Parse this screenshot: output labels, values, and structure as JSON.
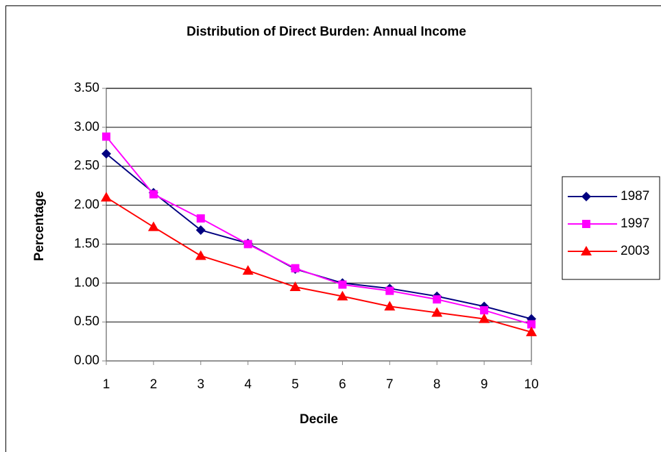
{
  "chart_data": {
    "type": "line",
    "title": "Distribution of Direct Burden: Annual Income",
    "x_label": "Decile",
    "y_label": "Percentage",
    "x": [
      1,
      2,
      3,
      4,
      5,
      6,
      7,
      8,
      9,
      10
    ],
    "xlim": [
      1,
      10
    ],
    "xticks": [
      1,
      2,
      3,
      4,
      5,
      6,
      7,
      8,
      9,
      10
    ],
    "ylim": [
      0,
      3.5
    ],
    "yticks": [
      {
        "value": 0,
        "label": "0.00"
      },
      {
        "value": 0.5,
        "label": "0.50"
      },
      {
        "value": 1,
        "label": "1.00"
      },
      {
        "value": 1.5,
        "label": "1.50"
      },
      {
        "value": 2,
        "label": "2.00"
      },
      {
        "value": 2.5,
        "label": "2.50"
      },
      {
        "value": 3,
        "label": "3.00"
      },
      {
        "value": 3.5,
        "label": "3.50"
      }
    ],
    "grid": true,
    "legend": "right",
    "series": [
      {
        "name": "1987",
        "color": "#000080",
        "marker": "diamond",
        "values": [
          2.66,
          2.16,
          1.68,
          1.51,
          1.18,
          1.0,
          0.93,
          0.83,
          0.7,
          0.54
        ]
      },
      {
        "name": "1997",
        "color": "#ff00ff",
        "marker": "square",
        "values": [
          2.88,
          2.14,
          1.83,
          1.5,
          1.19,
          0.98,
          0.9,
          0.79,
          0.65,
          0.47
        ]
      },
      {
        "name": "2003",
        "color": "#ff0000",
        "marker": "triangle",
        "values": [
          2.1,
          1.72,
          1.35,
          1.16,
          0.95,
          0.83,
          0.7,
          0.62,
          0.54,
          0.37
        ]
      }
    ]
  }
}
